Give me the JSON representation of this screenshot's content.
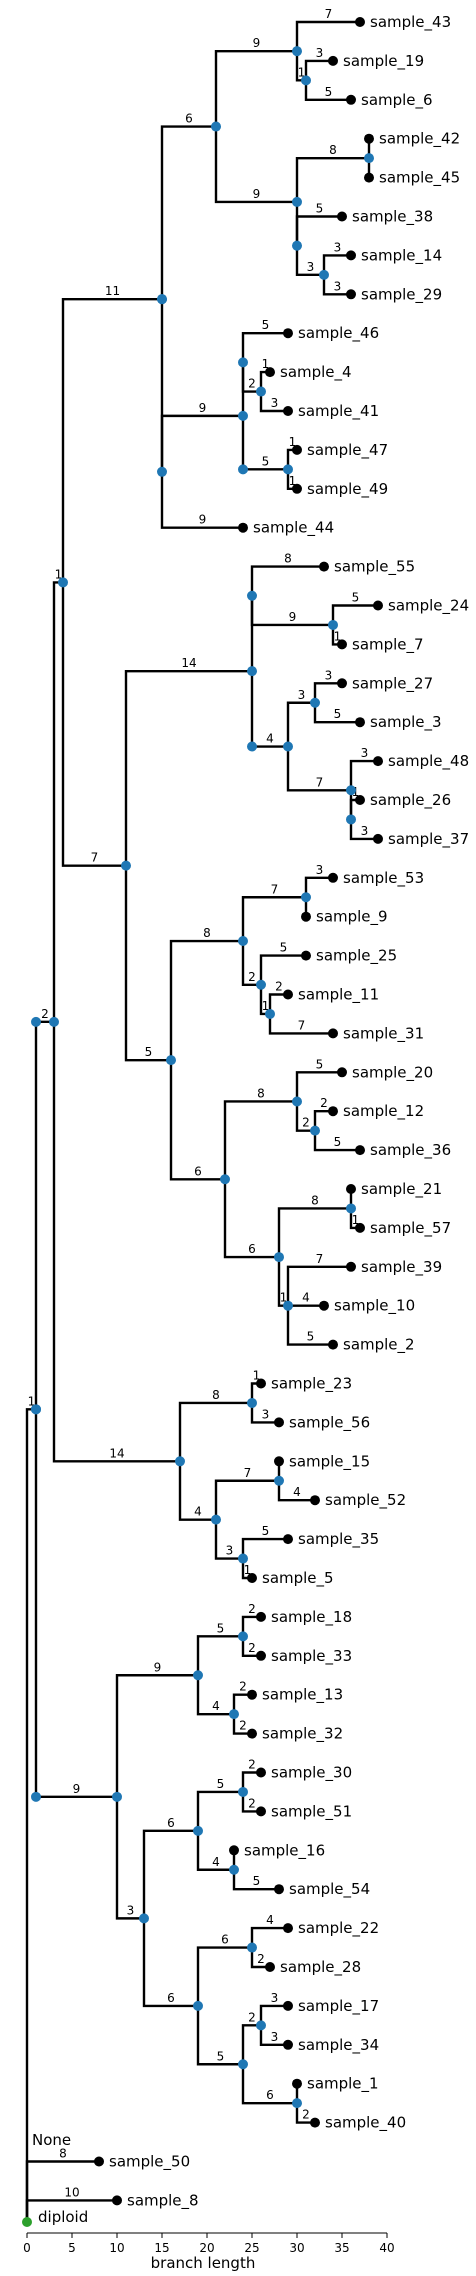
{
  "tree": {
    "root_label": "diploid",
    "root_label_color": "#008000",
    "root_color": "#2ca02c",
    "internal_node_color": "#1f77b4",
    "leaf_color": "#000000",
    "annotation": "None",
    "nodes": [
      {
        "id": "n_root",
        "leaf": false,
        "parent": null,
        "bl": 0
      },
      {
        "id": "n_i1",
        "leaf": false,
        "parent": "n_root",
        "bl": 1
      },
      {
        "id": "sample_50",
        "leaf": true,
        "parent": "n_root",
        "bl": 8,
        "name": "sample_50"
      },
      {
        "id": "sample_8",
        "leaf": true,
        "parent": "n_root",
        "bl": 10,
        "name": "sample_8"
      },
      {
        "id": "n_A",
        "leaf": false,
        "parent": "n_i1",
        "bl": 0
      },
      {
        "id": "n_B",
        "leaf": false,
        "parent": "n_A",
        "bl": 0
      },
      {
        "id": "n_C",
        "leaf": false,
        "parent": "n_B",
        "bl": 2
      },
      {
        "id": "n_D",
        "leaf": false,
        "parent": "n_C",
        "bl": 1
      },
      {
        "id": "n_E",
        "leaf": false,
        "parent": "n_D",
        "bl": 11
      },
      {
        "id": "n_F",
        "leaf": false,
        "parent": "n_E",
        "bl": 0
      },
      {
        "id": "n_G",
        "leaf": false,
        "parent": "n_F",
        "bl": 6
      },
      {
        "id": "n_H",
        "leaf": false,
        "parent": "n_G",
        "bl": 9
      },
      {
        "id": "sample_43",
        "leaf": true,
        "parent": "n_H",
        "bl": 7,
        "name": "sample_43"
      },
      {
        "id": "n_H2",
        "leaf": false,
        "parent": "n_H",
        "bl": 1
      },
      {
        "id": "sample_19",
        "leaf": true,
        "parent": "n_H2",
        "bl": 3,
        "name": "sample_19"
      },
      {
        "id": "sample_6",
        "leaf": true,
        "parent": "n_H2",
        "bl": 5,
        "name": "sample_6"
      },
      {
        "id": "n_J",
        "leaf": false,
        "parent": "n_G",
        "bl": 9
      },
      {
        "id": "n_J1",
        "leaf": false,
        "parent": "n_J",
        "bl": 8
      },
      {
        "id": "sample_42",
        "leaf": true,
        "parent": "n_J1",
        "bl": 0,
        "name": "sample_42"
      },
      {
        "id": "sample_45",
        "leaf": true,
        "parent": "n_J1",
        "bl": 0,
        "name": "sample_45"
      },
      {
        "id": "n_J2",
        "leaf": false,
        "parent": "n_J",
        "bl": 0
      },
      {
        "id": "sample_38",
        "leaf": true,
        "parent": "n_J2",
        "bl": 5,
        "name": "sample_38"
      },
      {
        "id": "n_J3",
        "leaf": false,
        "parent": "n_J2",
        "bl": 3
      },
      {
        "id": "sample_14",
        "leaf": true,
        "parent": "n_J3",
        "bl": 3,
        "name": "sample_14"
      },
      {
        "id": "sample_29",
        "leaf": true,
        "parent": "n_J3",
        "bl": 3,
        "name": "sample_29"
      },
      {
        "id": "n_K",
        "leaf": false,
        "parent": "n_F",
        "bl": 0
      },
      {
        "id": "n_L",
        "leaf": false,
        "parent": "n_K",
        "bl": 9
      },
      {
        "id": "n_M",
        "leaf": false,
        "parent": "n_L",
        "bl": 0
      },
      {
        "id": "sample_46",
        "leaf": true,
        "parent": "n_M",
        "bl": 5,
        "name": "sample_46"
      },
      {
        "id": "n_M1",
        "leaf": false,
        "parent": "n_M",
        "bl": 2
      },
      {
        "id": "sample_4",
        "leaf": true,
        "parent": "n_M1",
        "bl": 1,
        "name": "sample_4"
      },
      {
        "id": "sample_41",
        "leaf": true,
        "parent": "n_M1",
        "bl": 3,
        "name": "sample_41"
      },
      {
        "id": "n_N",
        "leaf": false,
        "parent": "n_L",
        "bl": 0
      },
      {
        "id": "n_N1",
        "leaf": false,
        "parent": "n_N",
        "bl": 5
      },
      {
        "id": "sample_47",
        "leaf": true,
        "parent": "n_N1",
        "bl": 1,
        "name": "sample_47"
      },
      {
        "id": "sample_49",
        "leaf": true,
        "parent": "n_N1",
        "bl": 1,
        "name": "sample_49"
      },
      {
        "id": "sample_44",
        "leaf": true,
        "parent": "n_K",
        "bl": 9,
        "name": "sample_44"
      },
      {
        "id": "n_O",
        "leaf": false,
        "parent": "n_D",
        "bl": 7
      },
      {
        "id": "n_P",
        "leaf": false,
        "parent": "n_O",
        "bl": 14
      },
      {
        "id": "n_P1",
        "leaf": false,
        "parent": "n_P",
        "bl": 0
      },
      {
        "id": "sample_55",
        "leaf": true,
        "parent": "n_P1",
        "bl": 8,
        "name": "sample_55"
      },
      {
        "id": "n_P2",
        "leaf": false,
        "parent": "n_P1",
        "bl": 9
      },
      {
        "id": "sample_24",
        "leaf": true,
        "parent": "n_P2",
        "bl": 5,
        "name": "sample_24"
      },
      {
        "id": "sample_7",
        "leaf": true,
        "parent": "n_P2",
        "bl": 1,
        "name": "sample_7"
      },
      {
        "id": "n_Q",
        "leaf": false,
        "parent": "n_P",
        "bl": 0
      },
      {
        "id": "n_Q1",
        "leaf": false,
        "parent": "n_Q",
        "bl": 4
      },
      {
        "id": "n_Q2",
        "leaf": false,
        "parent": "n_Q1",
        "bl": 3
      },
      {
        "id": "sample_27",
        "leaf": true,
        "parent": "n_Q2",
        "bl": 3,
        "name": "sample_27"
      },
      {
        "id": "sample_3",
        "leaf": true,
        "parent": "n_Q2",
        "bl": 5,
        "name": "sample_3"
      },
      {
        "id": "n_Q3",
        "leaf": false,
        "parent": "n_Q1",
        "bl": 7
      },
      {
        "id": "sample_48",
        "leaf": true,
        "parent": "n_Q3",
        "bl": 3,
        "name": "sample_48"
      },
      {
        "id": "n_Q4",
        "leaf": false,
        "parent": "n_Q3",
        "bl": 0
      },
      {
        "id": "sample_26",
        "leaf": true,
        "parent": "n_Q4",
        "bl": 1,
        "name": "sample_26"
      },
      {
        "id": "sample_37",
        "leaf": true,
        "parent": "n_Q4",
        "bl": 3,
        "name": "sample_37"
      },
      {
        "id": "n_R",
        "leaf": false,
        "parent": "n_O",
        "bl": 5
      },
      {
        "id": "n_S",
        "leaf": false,
        "parent": "n_R",
        "bl": 8
      },
      {
        "id": "n_S1",
        "leaf": false,
        "parent": "n_S",
        "bl": 7
      },
      {
        "id": "sample_53",
        "leaf": true,
        "parent": "n_S1",
        "bl": 3,
        "name": "sample_53"
      },
      {
        "id": "sample_9",
        "leaf": true,
        "parent": "n_S1",
        "bl": 0,
        "name": "sample_9"
      },
      {
        "id": "n_S2",
        "leaf": false,
        "parent": "n_S",
        "bl": 2
      },
      {
        "id": "sample_25",
        "leaf": true,
        "parent": "n_S2",
        "bl": 5,
        "name": "sample_25"
      },
      {
        "id": "n_S3",
        "leaf": false,
        "parent": "n_S2",
        "bl": 1
      },
      {
        "id": "sample_11",
        "leaf": true,
        "parent": "n_S3",
        "bl": 2,
        "name": "sample_11"
      },
      {
        "id": "sample_31",
        "leaf": true,
        "parent": "n_S3",
        "bl": 7,
        "name": "sample_31"
      },
      {
        "id": "n_T",
        "leaf": false,
        "parent": "n_R",
        "bl": 6
      },
      {
        "id": "n_T1",
        "leaf": false,
        "parent": "n_T",
        "bl": 8
      },
      {
        "id": "sample_20",
        "leaf": true,
        "parent": "n_T1",
        "bl": 5,
        "name": "sample_20"
      },
      {
        "id": "n_T2",
        "leaf": false,
        "parent": "n_T1",
        "bl": 2
      },
      {
        "id": "sample_12",
        "leaf": true,
        "parent": "n_T2",
        "bl": 2,
        "name": "sample_12"
      },
      {
        "id": "sample_36",
        "leaf": true,
        "parent": "n_T2",
        "bl": 5,
        "name": "sample_36"
      },
      {
        "id": "n_U",
        "leaf": false,
        "parent": "n_T",
        "bl": 6
      },
      {
        "id": "n_U1",
        "leaf": false,
        "parent": "n_U",
        "bl": 8
      },
      {
        "id": "sample_21",
        "leaf": true,
        "parent": "n_U1",
        "bl": 0,
        "name": "sample_21"
      },
      {
        "id": "sample_57",
        "leaf": true,
        "parent": "n_U1",
        "bl": 1,
        "name": "sample_57"
      },
      {
        "id": "n_U2",
        "leaf": false,
        "parent": "n_U",
        "bl": 1
      },
      {
        "id": "sample_39",
        "leaf": true,
        "parent": "n_U2",
        "bl": 7,
        "name": "sample_39"
      },
      {
        "id": "sample_10",
        "leaf": true,
        "parent": "n_U2",
        "bl": 4,
        "name": "sample_10"
      },
      {
        "id": "sample_2",
        "leaf": true,
        "parent": "n_U2",
        "bl": 5,
        "name": "sample_2"
      },
      {
        "id": "n_V",
        "leaf": false,
        "parent": "n_C",
        "bl": 14
      },
      {
        "id": "n_V1",
        "leaf": false,
        "parent": "n_V",
        "bl": 8
      },
      {
        "id": "sample_23",
        "leaf": true,
        "parent": "n_V1",
        "bl": 1,
        "name": "sample_23"
      },
      {
        "id": "sample_56",
        "leaf": true,
        "parent": "n_V1",
        "bl": 3,
        "name": "sample_56"
      },
      {
        "id": "n_W",
        "leaf": false,
        "parent": "n_V",
        "bl": 4
      },
      {
        "id": "n_W1",
        "leaf": false,
        "parent": "n_W",
        "bl": 7
      },
      {
        "id": "sample_15",
        "leaf": true,
        "parent": "n_W1",
        "bl": 0,
        "name": "sample_15"
      },
      {
        "id": "sample_52",
        "leaf": true,
        "parent": "n_W1",
        "bl": 4,
        "name": "sample_52"
      },
      {
        "id": "n_W2",
        "leaf": false,
        "parent": "n_W",
        "bl": 3
      },
      {
        "id": "sample_35",
        "leaf": true,
        "parent": "n_W2",
        "bl": 5,
        "name": "sample_35"
      },
      {
        "id": "sample_5",
        "leaf": true,
        "parent": "n_W2",
        "bl": 1,
        "name": "sample_5"
      },
      {
        "id": "n_X",
        "leaf": false,
        "parent": "n_A",
        "bl": 0
      },
      {
        "id": "n_Y",
        "leaf": false,
        "parent": "n_X",
        "bl": 9
      },
      {
        "id": "n_Z",
        "leaf": false,
        "parent": "n_Y",
        "bl": 9
      },
      {
        "id": "n_Z1",
        "leaf": false,
        "parent": "n_Z",
        "bl": 5
      },
      {
        "id": "sample_18",
        "leaf": true,
        "parent": "n_Z1",
        "bl": 2,
        "name": "sample_18"
      },
      {
        "id": "sample_33",
        "leaf": true,
        "parent": "n_Z1",
        "bl": 2,
        "name": "sample_33"
      },
      {
        "id": "n_Z2",
        "leaf": false,
        "parent": "n_Z",
        "bl": 4
      },
      {
        "id": "sample_13",
        "leaf": true,
        "parent": "n_Z2",
        "bl": 2,
        "name": "sample_13"
      },
      {
        "id": "sample_32",
        "leaf": true,
        "parent": "n_Z2",
        "bl": 2,
        "name": "sample_32"
      },
      {
        "id": "n_AA",
        "leaf": false,
        "parent": "n_Y",
        "bl": 3
      },
      {
        "id": "n_AB",
        "leaf": false,
        "parent": "n_AA",
        "bl": 6
      },
      {
        "id": "n_AB1",
        "leaf": false,
        "parent": "n_AB",
        "bl": 5
      },
      {
        "id": "sample_30",
        "leaf": true,
        "parent": "n_AB1",
        "bl": 2,
        "name": "sample_30"
      },
      {
        "id": "sample_51",
        "leaf": true,
        "parent": "n_AB1",
        "bl": 2,
        "name": "sample_51"
      },
      {
        "id": "n_AB2",
        "leaf": false,
        "parent": "n_AB",
        "bl": 4
      },
      {
        "id": "sample_16",
        "leaf": true,
        "parent": "n_AB2",
        "bl": 0,
        "name": "sample_16"
      },
      {
        "id": "sample_54",
        "leaf": true,
        "parent": "n_AB2",
        "bl": 5,
        "name": "sample_54"
      },
      {
        "id": "n_AC",
        "leaf": false,
        "parent": "n_AA",
        "bl": 6
      },
      {
        "id": "n_AC1",
        "leaf": false,
        "parent": "n_AC",
        "bl": 6
      },
      {
        "id": "sample_22",
        "leaf": true,
        "parent": "n_AC1",
        "bl": 4,
        "name": "sample_22"
      },
      {
        "id": "sample_28",
        "leaf": true,
        "parent": "n_AC1",
        "bl": 2,
        "name": "sample_28"
      },
      {
        "id": "n_AD",
        "leaf": false,
        "parent": "n_AC",
        "bl": 5
      },
      {
        "id": "n_AD1",
        "leaf": false,
        "parent": "n_AD",
        "bl": 2
      },
      {
        "id": "sample_17",
        "leaf": true,
        "parent": "n_AD1",
        "bl": 3,
        "name": "sample_17"
      },
      {
        "id": "sample_34",
        "leaf": true,
        "parent": "n_AD1",
        "bl": 3,
        "name": "sample_34"
      },
      {
        "id": "n_AD2",
        "leaf": false,
        "parent": "n_AD",
        "bl": 6
      },
      {
        "id": "sample_1",
        "leaf": true,
        "parent": "n_AD2",
        "bl": 0,
        "name": "sample_1"
      },
      {
        "id": "sample_40",
        "leaf": true,
        "parent": "n_AD2",
        "bl": 2,
        "name": "sample_40"
      }
    ]
  },
  "axis": {
    "label": "branch length",
    "ticks": [
      "0",
      "5",
      "10",
      "15",
      "20",
      "25",
      "30",
      "35",
      "40"
    ],
    "range": [
      0,
      40
    ]
  }
}
